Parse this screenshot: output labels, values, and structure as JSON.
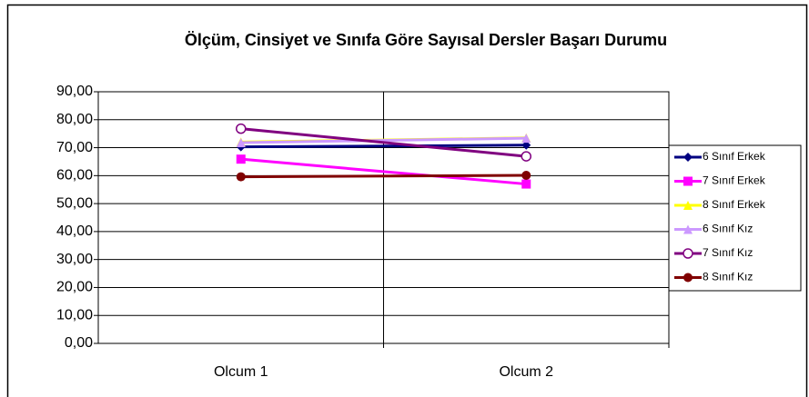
{
  "chart_data": {
    "type": "line",
    "title": "Ölçüm, Cinsiyet ve Sınıfa Göre Sayısal Dersler Başarı Durumu",
    "categories": [
      "Olcum 1",
      "Olcum 2"
    ],
    "series": [
      {
        "name": "6 Sınıf Erkek",
        "color": "#000080",
        "marker": "diamond",
        "values": [
          70.3,
          70.9
        ]
      },
      {
        "name": "7 Sınıf Erkek",
        "color": "#FF00FF",
        "marker": "square",
        "values": [
          65.9,
          57.0
        ]
      },
      {
        "name": "8 Sınıf Erkek",
        "color": "#FFFF00",
        "marker": "triangle",
        "values": [
          72.0,
          73.5
        ]
      },
      {
        "name": "6 Sınıf Kız",
        "color": "#CC99FF",
        "marker": "triangle",
        "values": [
          71.8,
          73.4
        ]
      },
      {
        "name": "7 Sınıf Kız",
        "color": "#800080",
        "marker": "open-circle",
        "values": [
          76.8,
          66.9
        ]
      },
      {
        "name": "8 Sınıf Kız",
        "color": "#800000",
        "marker": "circle",
        "values": [
          59.6,
          60.1
        ]
      }
    ],
    "ylim": [
      0,
      90
    ],
    "yticks": [
      {
        "value": 0,
        "label": "0,00"
      },
      {
        "value": 10,
        "label": "10,00"
      },
      {
        "value": 20,
        "label": "20,00"
      },
      {
        "value": 30,
        "label": "30,00"
      },
      {
        "value": 40,
        "label": "40,00"
      },
      {
        "value": 50,
        "label": "50,00"
      },
      {
        "value": 60,
        "label": "60,00"
      },
      {
        "value": 70,
        "label": "70,00"
      },
      {
        "value": 80,
        "label": "80,00"
      },
      {
        "value": 90,
        "label": "90,00"
      }
    ],
    "grid": true,
    "legend": "right"
  }
}
